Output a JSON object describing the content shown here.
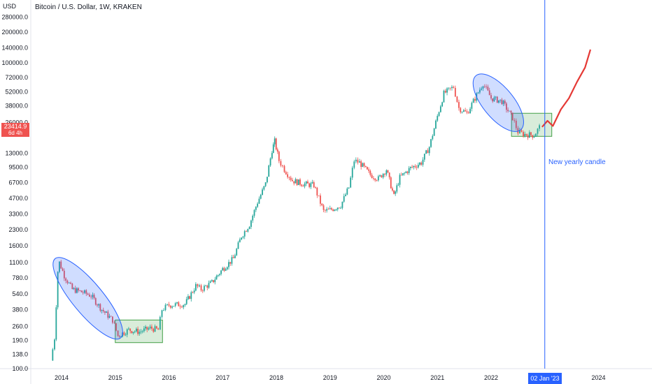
{
  "header": {
    "title": "Bitcoin / U.S. Dollar, 1W, KRAKEN"
  },
  "axis": {
    "currency": "USD"
  },
  "last_price": {
    "value": "23414.9",
    "countdown": "6d 4h",
    "color": "#ef5350"
  },
  "marker": {
    "date_label": "02 Jan '23",
    "note": "New yearly candle",
    "color": "#2962ff"
  },
  "chart_data": {
    "type": "candlestick",
    "title": "Bitcoin / U.S. Dollar, 1W, KRAKEN",
    "y_scale": "log",
    "ylim": [
      100,
      280000
    ],
    "xlim": [
      2013.75,
      2024.9
    ],
    "y_ticks": [
      "280000.0",
      "200000.0",
      "140000.0",
      "100000.0",
      "72000.0",
      "52000.0",
      "38000.0",
      "26000.0",
      "13000.0",
      "9500.0",
      "6700.0",
      "4700.0",
      "3300.0",
      "2300.0",
      "1600.0",
      "1100.0",
      "780.0",
      "540.0",
      "380.0",
      "260.0",
      "190.0",
      "138.0",
      "100.0"
    ],
    "x_ticks": [
      "2014",
      "2015",
      "2016",
      "2017",
      "2018",
      "2019",
      "2020",
      "2021",
      "2022",
      "2024"
    ],
    "colors": {
      "up": "#26a69a",
      "down": "#ef5350"
    },
    "price_path": [
      [
        2013.8,
        120
      ],
      [
        2013.87,
        200
      ],
      [
        2013.93,
        900
      ],
      [
        2013.96,
        1100
      ],
      [
        2014.05,
        820
      ],
      [
        2014.2,
        600
      ],
      [
        2014.4,
        560
      ],
      [
        2014.55,
        520
      ],
      [
        2014.75,
        380
      ],
      [
        2014.95,
        300
      ],
      [
        2015.05,
        210
      ],
      [
        2015.25,
        240
      ],
      [
        2015.45,
        230
      ],
      [
        2015.65,
        250
      ],
      [
        2015.8,
        240
      ],
      [
        2015.87,
        380
      ],
      [
        2016.0,
        420
      ],
      [
        2016.3,
        430
      ],
      [
        2016.5,
        650
      ],
      [
        2016.6,
        600
      ],
      [
        2016.8,
        700
      ],
      [
        2017.0,
        950
      ],
      [
        2017.2,
        1200
      ],
      [
        2017.35,
        2000
      ],
      [
        2017.5,
        2600
      ],
      [
        2017.65,
        4300
      ],
      [
        2017.8,
        6500
      ],
      [
        2017.92,
        14000
      ],
      [
        2017.97,
        17000
      ],
      [
        2018.05,
        11000
      ],
      [
        2018.15,
        9000
      ],
      [
        2018.3,
        7000
      ],
      [
        2018.5,
        6500
      ],
      [
        2018.7,
        6300
      ],
      [
        2018.88,
        3500
      ],
      [
        2019.0,
        3600
      ],
      [
        2019.2,
        4000
      ],
      [
        2019.35,
        6000
      ],
      [
        2019.45,
        11000
      ],
      [
        2019.55,
        10500
      ],
      [
        2019.75,
        8000
      ],
      [
        2019.9,
        7300
      ],
      [
        2020.05,
        9000
      ],
      [
        2020.19,
        4900
      ],
      [
        2020.3,
        7500
      ],
      [
        2020.5,
        9300
      ],
      [
        2020.7,
        10500
      ],
      [
        2020.85,
        15000
      ],
      [
        2021.0,
        30000
      ],
      [
        2021.12,
        50000
      ],
      [
        2021.3,
        58000
      ],
      [
        2021.4,
        36000
      ],
      [
        2021.55,
        32000
      ],
      [
        2021.7,
        45000
      ],
      [
        2021.85,
        63000
      ],
      [
        2022.0,
        45000
      ],
      [
        2022.2,
        42000
      ],
      [
        2022.4,
        29000
      ],
      [
        2022.5,
        21000
      ],
      [
        2022.6,
        20000
      ],
      [
        2022.8,
        19500
      ],
      [
        2022.9,
        23414.9
      ]
    ],
    "projection": [
      [
        2022.95,
        23500
      ],
      [
        2023.05,
        27000
      ],
      [
        2023.15,
        24000
      ],
      [
        2023.3,
        35000
      ],
      [
        2023.45,
        45000
      ],
      [
        2023.6,
        65000
      ],
      [
        2023.75,
        90000
      ],
      [
        2023.85,
        135000
      ]
    ],
    "projection_color": "#e53935",
    "vertical_marker": {
      "x": 2023.0,
      "label": "02 Jan '23",
      "color": "#2962ff"
    },
    "annotations": [
      {
        "type": "ellipse",
        "x_range": [
          2013.88,
          2015.1
        ],
        "y_range": [
          200,
          1200
        ],
        "color": "#2962ff"
      },
      {
        "type": "box",
        "x_range": [
          2015.0,
          2015.88
        ],
        "y_range": [
          180,
          300
        ],
        "color": "#43a047"
      },
      {
        "type": "ellipse",
        "x_range": [
          2021.72,
          2022.55
        ],
        "y_range": [
          22000,
          75000
        ],
        "color": "#2962ff"
      },
      {
        "type": "box",
        "x_range": [
          2022.38,
          2023.13
        ],
        "y_range": [
          19000,
          32000
        ],
        "color": "#43a047"
      },
      {
        "type": "text",
        "x": 2023.05,
        "y": 10800,
        "text": "New yearly candle",
        "color": "#2962ff"
      }
    ]
  }
}
